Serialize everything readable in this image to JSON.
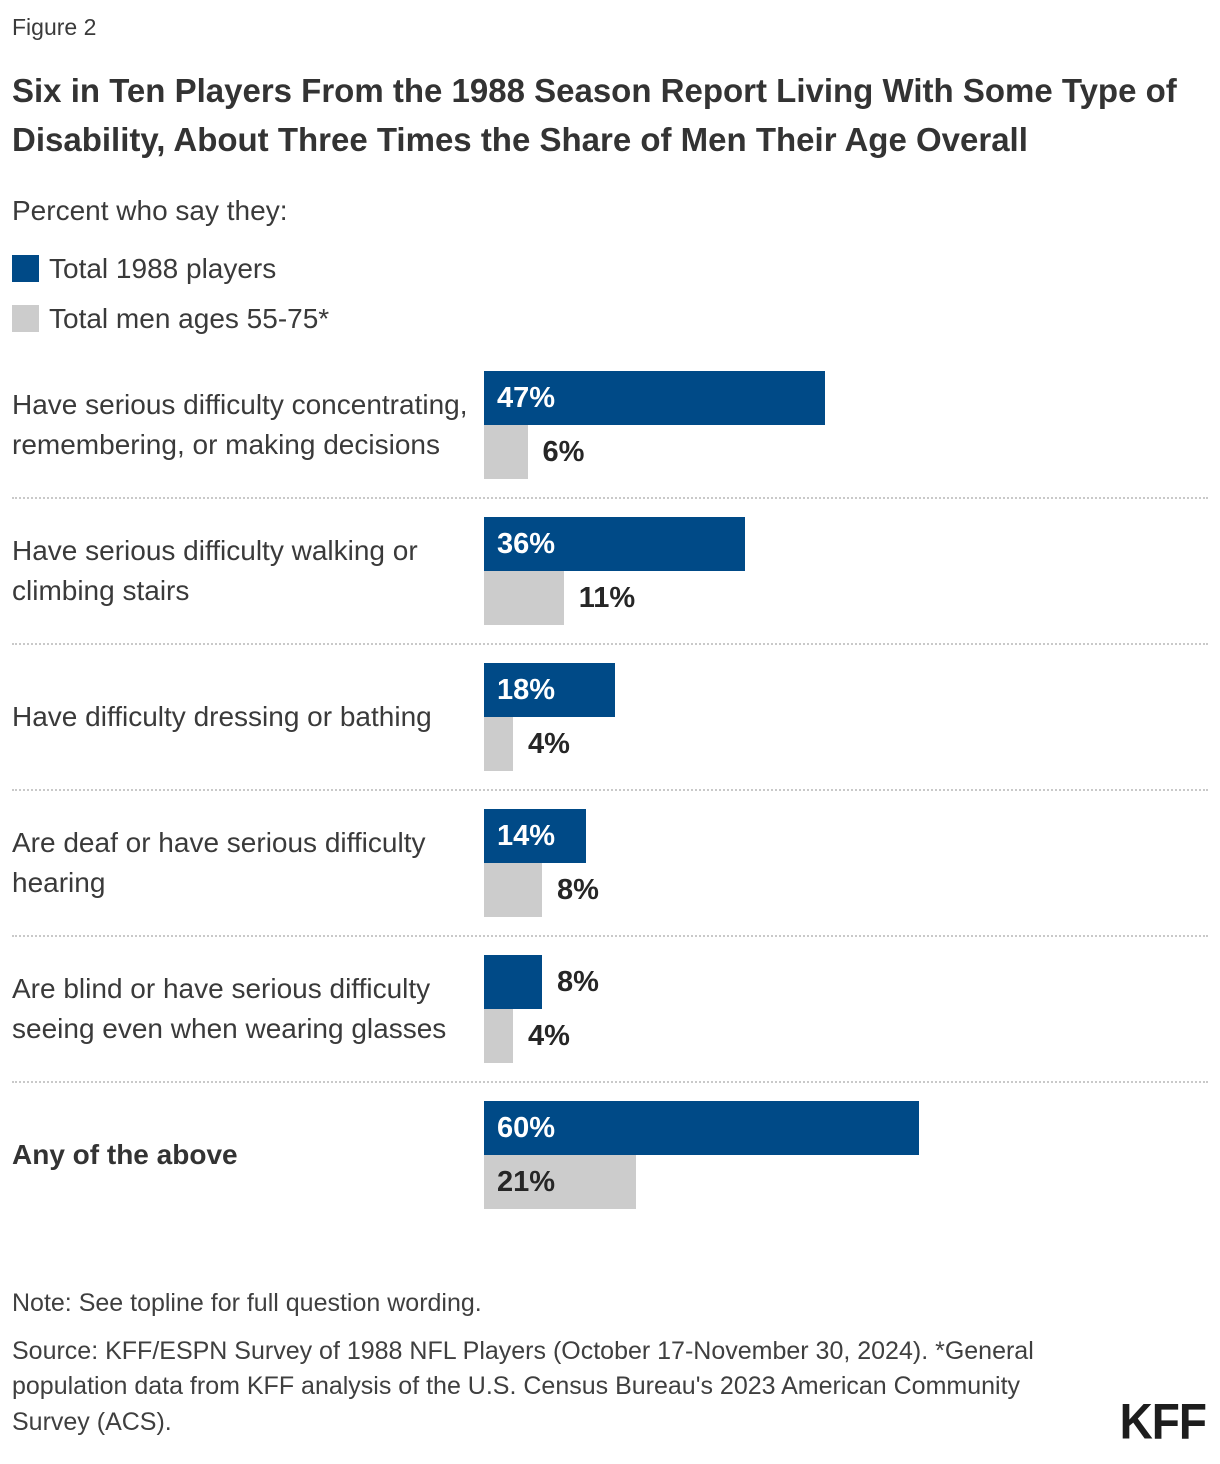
{
  "figure_label": "Figure 2",
  "title": "Six in Ten Players From the 1988 Season Report Living With Some Type of Disability, About Three Times the Share of Men Their Age Overall",
  "subtitle": "Percent who say they:",
  "colors": {
    "players_blue": "#004a87",
    "men_gray": "#cccccc",
    "value_text_dark": "#262626",
    "value_text_light": "#ffffff",
    "separator": "#c9c9c9"
  },
  "chart_data": {
    "type": "bar",
    "orientation": "horizontal",
    "unit": "%",
    "legend_position": "top-left",
    "grid": false,
    "xlim": [
      0,
      100
    ],
    "categories": [
      "Have serious difficulty concentrating, remembering, or making decisions",
      "Have serious difficulty walking or climbing stairs",
      "Have difficulty dressing or bathing",
      "Are deaf or have serious difficulty hearing",
      "Are blind or have serious difficulty seeing even when wearing glasses",
      "Any of the above"
    ],
    "emphasized_category_index": 5,
    "series": [
      {
        "name": "Total 1988 players",
        "color": "#004a87",
        "values": [
          47,
          36,
          18,
          14,
          8,
          60
        ]
      },
      {
        "name": "Total men ages 55-75*",
        "color": "#cccccc",
        "values": [
          6,
          11,
          4,
          8,
          4,
          21
        ]
      }
    ]
  },
  "note": "Note: See topline for full question wording.",
  "source": "Source: KFF/ESPN Survey of 1988 NFL Players (October 17-November 30, 2024). *General population data from KFF analysis of the U.S. Census Bureau's 2023 American Community Survey (ACS).",
  "logo": "KFF"
}
